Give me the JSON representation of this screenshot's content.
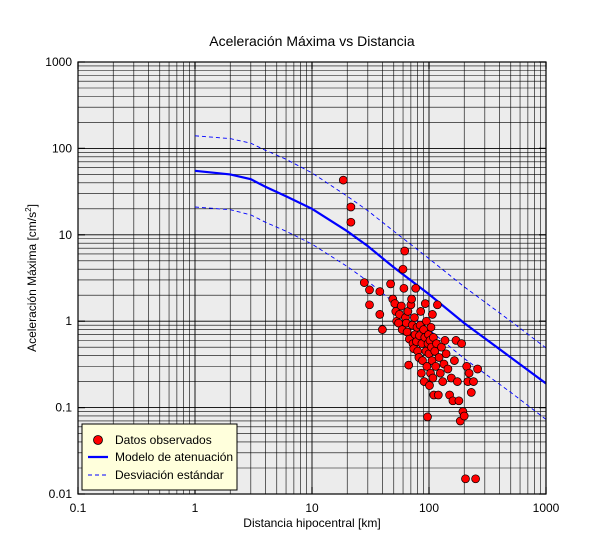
{
  "chart_data": {
    "type": "scatter",
    "title": "Aceleración Máxima vs Distancia",
    "xlabel": "Distancia hipocentral [km]",
    "ylabel_main": "Aceleración Máxima [cm/s",
    "ylabel_sup": "2",
    "ylabel_end": "]",
    "x_scale": "log",
    "y_scale": "log",
    "xlim": [
      0.1,
      1000
    ],
    "ylim": [
      0.01,
      1000
    ],
    "x_ticks": [
      "0.1",
      "1",
      "10",
      "100",
      "1000"
    ],
    "y_ticks": [
      "0.01",
      "0.1",
      "1",
      "10",
      "100",
      "1000"
    ],
    "grid": true,
    "legend_position": "bottom-left",
    "legend": [
      {
        "label": "Datos observados",
        "kind": "marker",
        "color": "#ff0000"
      },
      {
        "label": "Modelo de atenuación",
        "kind": "line",
        "color": "#0000ff"
      },
      {
        "label": "Desviación estándar",
        "kind": "dashed",
        "color": "#0000ff"
      }
    ],
    "colors": {
      "plot_bg": "#ececec",
      "grid": "#000000",
      "legend_bg": "#ffffdc",
      "marker": "#ff0000",
      "model": "#0000ff"
    },
    "series": [
      {
        "name": "Datos observados",
        "kind": "scatter",
        "points": [
          [
            18.5,
            43
          ],
          [
            21.5,
            21
          ],
          [
            21.5,
            14
          ],
          [
            28,
            2.8
          ],
          [
            31,
            2.3
          ],
          [
            31,
            1.55
          ],
          [
            38,
            2.2
          ],
          [
            38,
            1.2
          ],
          [
            40,
            0.8
          ],
          [
            47,
            2.7
          ],
          [
            49,
            1.8
          ],
          [
            51,
            1.6
          ],
          [
            52,
            1.3
          ],
          [
            53,
            1.0
          ],
          [
            55,
            0.95
          ],
          [
            56,
            1.2
          ],
          [
            58,
            1.5
          ],
          [
            59,
            0.8
          ],
          [
            60,
            4.0
          ],
          [
            61,
            2.4
          ],
          [
            62,
            6.5
          ],
          [
            63,
            1.1
          ],
          [
            64,
            0.95
          ],
          [
            65,
            0.75
          ],
          [
            66,
            1.3
          ],
          [
            67,
            0.31
          ],
          [
            68,
            0.62
          ],
          [
            70,
            1.55
          ],
          [
            71,
            1.8
          ],
          [
            72,
            0.9
          ],
          [
            73,
            0.55
          ],
          [
            74,
            0.48
          ],
          [
            75,
            1.1
          ],
          [
            76,
            0.7
          ],
          [
            77,
            2.4
          ],
          [
            78,
            0.58
          ],
          [
            79,
            0.85
          ],
          [
            80,
            0.45
          ],
          [
            82,
            0.38
          ],
          [
            83,
            0.68
          ],
          [
            84,
            0.9
          ],
          [
            85,
            1.3
          ],
          [
            86,
            0.25
          ],
          [
            87,
            0.55
          ],
          [
            88,
            0.35
          ],
          [
            90,
            0.8
          ],
          [
            91,
            0.2
          ],
          [
            92,
            0.65
          ],
          [
            93,
            1.6
          ],
          [
            94,
            0.45
          ],
          [
            95,
            1.0
          ],
          [
            96,
            0.3
          ],
          [
            97,
            0.078
          ],
          [
            98,
            0.55
          ],
          [
            99,
            0.7
          ],
          [
            100,
            0.42
          ],
          [
            101,
            0.18
          ],
          [
            102,
            0.6
          ],
          [
            103,
            0.25
          ],
          [
            104,
            0.85
          ],
          [
            105,
            0.5
          ],
          [
            106,
            0.35
          ],
          [
            107,
            1.2
          ],
          [
            108,
            0.22
          ],
          [
            109,
            0.65
          ],
          [
            110,
            0.14
          ],
          [
            112,
            0.45
          ],
          [
            114,
            0.3
          ],
          [
            116,
            0.55
          ],
          [
            118,
            1.55
          ],
          [
            120,
            0.14
          ],
          [
            122,
            0.38
          ],
          [
            125,
            0.25
          ],
          [
            128,
            0.5
          ],
          [
            131,
            0.2
          ],
          [
            134,
            0.32
          ],
          [
            137,
            0.6
          ],
          [
            140,
            0.42
          ],
          [
            145,
            0.28
          ],
          [
            150,
            0.14
          ],
          [
            155,
            0.22
          ],
          [
            160,
            0.12
          ],
          [
            165,
            0.35
          ],
          [
            170,
            0.6
          ],
          [
            175,
            0.2
          ],
          [
            180,
            0.12
          ],
          [
            185,
            0.07
          ],
          [
            190,
            0.55
          ],
          [
            195,
            0.09
          ],
          [
            200,
            0.08
          ],
          [
            205,
            0.015
          ],
          [
            210,
            0.3
          ],
          [
            215,
            0.2
          ],
          [
            220,
            0.25
          ],
          [
            230,
            0.15
          ],
          [
            240,
            0.2
          ],
          [
            250,
            0.015
          ],
          [
            260,
            0.28
          ]
        ]
      },
      {
        "name": "Modelo de atenuación",
        "kind": "line",
        "points": [
          [
            1,
            55
          ],
          [
            2,
            50
          ],
          [
            3,
            44
          ],
          [
            4,
            36
          ],
          [
            6,
            28
          ],
          [
            10,
            20
          ],
          [
            20,
            11
          ],
          [
            30,
            7.4
          ],
          [
            50,
            4.2
          ],
          [
            100,
            2.05
          ],
          [
            200,
            0.95
          ],
          [
            500,
            0.38
          ],
          [
            1000,
            0.19
          ]
        ]
      },
      {
        "name": "Desviación estándar",
        "kind": "dashed",
        "points": [
          [
            1,
            140
          ],
          [
            2,
            130
          ],
          [
            3,
            115
          ],
          [
            4,
            95
          ],
          [
            6,
            75
          ],
          [
            10,
            52
          ],
          [
            20,
            28
          ],
          [
            30,
            19
          ],
          [
            50,
            11
          ],
          [
            100,
            5.3
          ],
          [
            200,
            2.5
          ],
          [
            500,
            1.0
          ],
          [
            1000,
            0.49
          ]
        ]
      },
      {
        "name": "Desviación estándar",
        "kind": "dashed",
        "points": [
          [
            1,
            21
          ],
          [
            2,
            19.5
          ],
          [
            3,
            17
          ],
          [
            4,
            14
          ],
          [
            6,
            11
          ],
          [
            10,
            7.8
          ],
          [
            20,
            4.3
          ],
          [
            30,
            2.9
          ],
          [
            50,
            1.65
          ],
          [
            100,
            0.8
          ],
          [
            200,
            0.37
          ],
          [
            500,
            0.15
          ],
          [
            1000,
            0.073
          ]
        ]
      }
    ]
  }
}
